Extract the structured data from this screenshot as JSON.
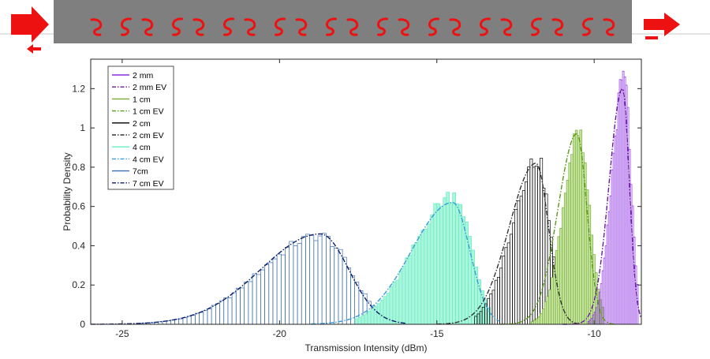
{
  "banner": {
    "background": "#7f7f7f",
    "arrow_color": "#ee1111",
    "icons": [
      "arrow-right-icon",
      "arrow-left-icon",
      "swirl-icon",
      "arrow-right-icon",
      "minus-icon"
    ]
  },
  "chart_data": {
    "type": "histogram",
    "xlabel": "Transmission Intensity (dBm)",
    "ylabel": "Probability Density",
    "xlim": [
      -26,
      -8.5
    ],
    "ylim": [
      0,
      1.35
    ],
    "xticks": [
      -25,
      -20,
      -15,
      -10
    ],
    "yticks": [
      0,
      0.2,
      0.4,
      0.6,
      0.8,
      1,
      1.2
    ],
    "tick_labels_x": [
      "-25",
      "-20",
      "-15",
      "-10"
    ],
    "tick_labels_y": [
      "0",
      "0.2",
      "0.4",
      "0.6",
      "0.8",
      "1",
      "1.2"
    ],
    "legend_position": "top-left",
    "legend": [
      {
        "label": "2 mm",
        "color": "#8a2be2",
        "style": "solid"
      },
      {
        "label": "2 mm EV",
        "color": "#6a1b9a",
        "style": "dashdot"
      },
      {
        "label": "1 cm",
        "color": "#77ac30",
        "style": "solid"
      },
      {
        "label": "1 cm EV",
        "color": "#5a9a1a",
        "style": "dashdot"
      },
      {
        "label": "2 cm",
        "color": "#000000",
        "style": "solid"
      },
      {
        "label": "2 cm EV",
        "color": "#333333",
        "style": "dashdot"
      },
      {
        "label": "4 cm",
        "color": "#66eebb",
        "style": "solid"
      },
      {
        "label": "4 cm EV",
        "color": "#3b9cd9",
        "style": "dashdot"
      },
      {
        "label": "7cm",
        "color": "#3b6fb0",
        "style": "solid"
      },
      {
        "label": "7 cm EV",
        "color": "#0a1f6b",
        "style": "dashdot"
      }
    ],
    "series": [
      {
        "name": "7cm",
        "color": "#3b6fb0",
        "fill": "none",
        "peak_x": -18.7,
        "peak_y": 0.45,
        "left_width": 1.9,
        "right_width": 0.95,
        "x_start": -24.5,
        "x_end": -16.6,
        "bin": 0.13
      },
      {
        "name": "4 cm",
        "color": "#66eebb",
        "fill": "#aaf5dd",
        "peak_x": -14.45,
        "peak_y": 0.66,
        "left_width": 1.25,
        "right_width": 0.55,
        "x_start": -17.6,
        "x_end": -13.3,
        "bin": 0.1
      },
      {
        "name": "2 cm",
        "color": "#000000",
        "fill": "none",
        "peak_x": -11.8,
        "peak_y": 0.84,
        "left_width": 0.8,
        "right_width": 0.38,
        "x_start": -13.8,
        "x_end": -11.0,
        "bin": 0.08
      },
      {
        "name": "1 cm",
        "color": "#77ac30",
        "fill": "#c8e6a6",
        "peak_x": -10.5,
        "peak_y": 0.96,
        "left_width": 0.5,
        "right_width": 0.35,
        "x_start": -12.0,
        "x_end": -9.7,
        "bin": 0.07
      },
      {
        "name": "2 mm",
        "color": "#8a2be2",
        "fill": "none",
        "peak_x": -9.05,
        "peak_y": 1.25,
        "left_width": 0.38,
        "right_width": 0.22,
        "x_start": -10.2,
        "x_end": -8.6,
        "bin": 0.05
      }
    ],
    "fits": [
      {
        "name": "7 cm EV",
        "color": "#0a1f6b",
        "peak_x": -18.7,
        "peak_y": 0.46,
        "left_width": 1.9,
        "right_width": 0.9,
        "x_start": -26,
        "x_end": -16.0
      },
      {
        "name": "4 cm EV",
        "color": "#3b9cd9",
        "peak_x": -14.5,
        "peak_y": 0.62,
        "left_width": 1.3,
        "right_width": 0.55,
        "x_start": -19,
        "x_end": -13.0
      },
      {
        "name": "2 cm EV",
        "color": "#333333",
        "peak_x": -11.85,
        "peak_y": 0.82,
        "left_width": 0.85,
        "right_width": 0.4,
        "x_start": -15,
        "x_end": -10.5
      },
      {
        "name": "1 cm EV",
        "color": "#5a9a1a",
        "peak_x": -10.55,
        "peak_y": 0.97,
        "left_width": 0.6,
        "right_width": 0.32,
        "x_start": -13,
        "x_end": -9.3
      },
      {
        "name": "2 mm EV",
        "color": "#6a1b9a",
        "peak_x": -9.1,
        "peak_y": 1.2,
        "left_width": 0.42,
        "right_width": 0.22,
        "x_start": -11,
        "x_end": -8.5
      }
    ]
  }
}
